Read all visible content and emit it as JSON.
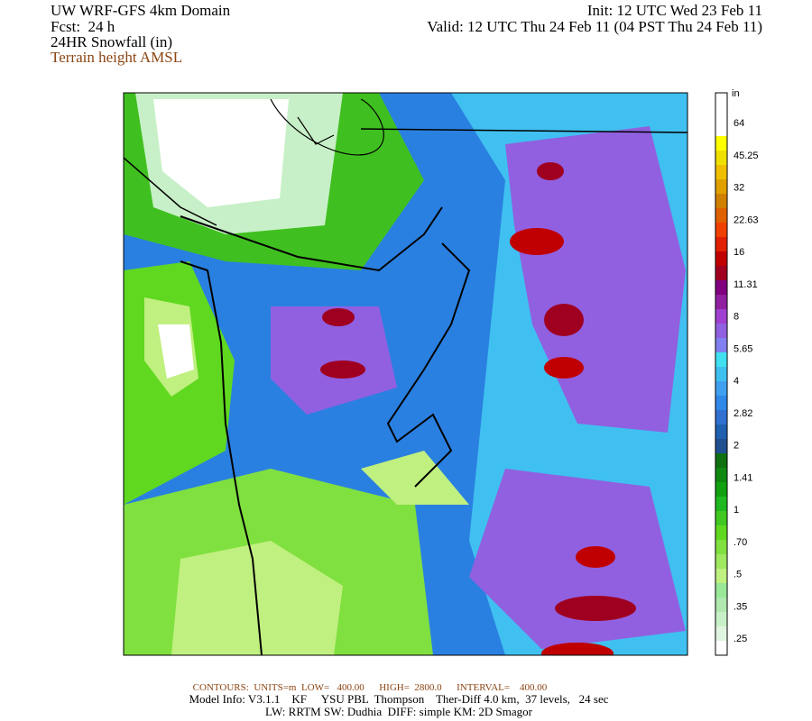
{
  "header": {
    "title": "UW WRF-GFS 4km Domain",
    "forecast": "Fcst:  24 h",
    "field": "24HR Snowfall (in)",
    "overlay": "Terrain height AMSL",
    "init": "Init: 12 UTC Wed 23 Feb 11",
    "valid": "Valid: 12 UTC Thu 24 Feb 11 (04 PST Thu 24 Feb 11)"
  },
  "colorbar": {
    "unit": "in",
    "labels": [
      "64",
      "45.25",
      "32",
      "22.63",
      "16",
      "11.31",
      "8",
      "5.65",
      "4",
      "2.82",
      "2",
      "1.41",
      "1",
      ".70",
      ".5",
      ".35",
      ".25"
    ],
    "colors": [
      "#ffffff",
      "#ffffff",
      "#ffffff",
      "#ffff00",
      "#f0e000",
      "#f0c000",
      "#e0a000",
      "#d08000",
      "#e06000",
      "#f04000",
      "#e02000",
      "#c00000",
      "#a00020",
      "#800080",
      "#9020a0",
      "#a040d0",
      "#9060e0",
      "#8080f0",
      "#40e0f0",
      "#40c0f0",
      "#40a0f0",
      "#3088e8",
      "#3070d0",
      "#2060b0",
      "#205090",
      "#107010",
      "#108810",
      "#10a010",
      "#20b820",
      "#40c820",
      "#60d820",
      "#80e040",
      "#a0e860",
      "#c0f080",
      "#98e898",
      "#b0e8b0",
      "#c8f0c8",
      "#e0f5e0",
      "#ffffff"
    ]
  },
  "footer": {
    "contours": "CONTOURS:  UNITS=m  LOW=   400.00      HIGH=  2800.0      INTERVAL=    400.00",
    "model_info": "Model Info: V3.1.1    KF     YSU PBL  Thompson    Ther-Diff 4.0 km,  37 levels,   24 sec",
    "physics": "LW: RRTM SW: Dudhia  DIFF: simple KM: 2D Smagor"
  }
}
